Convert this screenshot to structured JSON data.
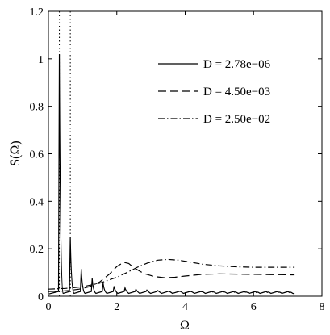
{
  "chart_data": {
    "type": "line",
    "xlabel": "Ω",
    "ylabel": "S(Ω)",
    "xlim": [
      0,
      8
    ],
    "ylim": [
      0,
      1.2
    ],
    "xticks": [
      "0",
      "2",
      "4",
      "6",
      "8"
    ],
    "yticks": [
      "0",
      "0.2",
      "0.4",
      "0.6",
      "0.8",
      "1",
      "1.2"
    ],
    "grid": false,
    "legend_position": "top-right",
    "series": [
      {
        "name": "D = 2.78e−06",
        "style": "solid",
        "peaks": [
          {
            "x": 0.32,
            "y": 1.02
          },
          {
            "x": 0.64,
            "y": 0.25
          },
          {
            "x": 0.96,
            "y": 0.115
          },
          {
            "x": 1.28,
            "y": 0.075
          },
          {
            "x": 1.6,
            "y": 0.055
          },
          {
            "x": 1.92,
            "y": 0.042
          },
          {
            "x": 2.24,
            "y": 0.035
          },
          {
            "x": 2.56,
            "y": 0.03
          },
          {
            "x": 2.88,
            "y": 0.026
          },
          {
            "x": 3.2,
            "y": 0.024
          },
          {
            "x": 3.52,
            "y": 0.022
          },
          {
            "x": 3.84,
            "y": 0.021
          },
          {
            "x": 4.16,
            "y": 0.02
          },
          {
            "x": 4.48,
            "y": 0.019
          },
          {
            "x": 4.8,
            "y": 0.018
          },
          {
            "x": 5.12,
            "y": 0.018
          },
          {
            "x": 5.44,
            "y": 0.017
          },
          {
            "x": 5.76,
            "y": 0.017
          },
          {
            "x": 6.08,
            "y": 0.016
          },
          {
            "x": 6.4,
            "y": 0.016
          },
          {
            "x": 6.72,
            "y": 0.016
          },
          {
            "x": 7.04,
            "y": 0.016
          }
        ],
        "baseline": 0.01
      },
      {
        "name": "D = 4.50e−03",
        "style": "dashed",
        "x": [
          0,
          0.3,
          0.6,
          0.9,
          1.2,
          1.5,
          1.8,
          2.0,
          2.2,
          2.35,
          2.5,
          2.8,
          3.1,
          3.4,
          3.7,
          4.0,
          4.5,
          5.0,
          5.5,
          6.0,
          6.5,
          7.2
        ],
        "y": [
          0.02,
          0.021,
          0.024,
          0.03,
          0.04,
          0.06,
          0.095,
          0.125,
          0.143,
          0.138,
          0.12,
          0.095,
          0.083,
          0.078,
          0.08,
          0.085,
          0.092,
          0.094,
          0.093,
          0.092,
          0.091,
          0.09
        ]
      },
      {
        "name": "D = 2.50e−02",
        "style": "dashdot",
        "x": [
          0,
          0.5,
          1.0,
          1.5,
          2.0,
          2.3,
          2.6,
          2.9,
          3.2,
          3.5,
          3.8,
          4.1,
          4.5,
          5.0,
          5.5,
          6.0,
          6.5,
          7.2
        ],
        "y": [
          0.03,
          0.033,
          0.04,
          0.055,
          0.08,
          0.1,
          0.122,
          0.14,
          0.152,
          0.155,
          0.152,
          0.145,
          0.135,
          0.128,
          0.124,
          0.122,
          0.122,
          0.122
        ]
      }
    ],
    "vertical_lines": [
      {
        "x": 0.32,
        "style": "dotted"
      },
      {
        "x": 0.64,
        "style": "dotted"
      }
    ]
  }
}
